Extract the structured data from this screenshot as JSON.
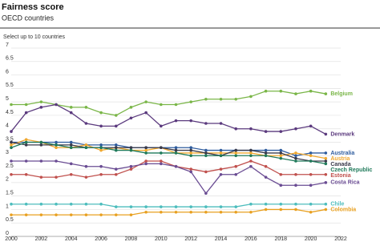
{
  "chart_data": {
    "type": "line",
    "title": "Fairness score",
    "subtitle": "OECD countries",
    "note": "Select up to 10 countries",
    "x": [
      2000,
      2001,
      2002,
      2003,
      2004,
      2005,
      2006,
      2007,
      2008,
      2009,
      2010,
      2011,
      2012,
      2013,
      2014,
      2015,
      2016,
      2017,
      2018,
      2019,
      2020,
      2021
    ],
    "xlim": [
      2000,
      2022
    ],
    "xticks": [
      2000,
      2002,
      2004,
      2006,
      2008,
      2010,
      2012,
      2014,
      2016,
      2018,
      2020,
      2022
    ],
    "ylim": [
      0,
      7
    ],
    "yticks": [
      0,
      0.5,
      1,
      1.5,
      2,
      2.5,
      3,
      3.5,
      4,
      4.5,
      5,
      5.5,
      6,
      6.5,
      7
    ],
    "grid": true,
    "series": [
      {
        "name": "Belgium",
        "color": "#7ab648",
        "values": [
          4.9,
          4.9,
          5.0,
          4.9,
          4.8,
          4.8,
          4.6,
          4.5,
          4.8,
          5.0,
          4.9,
          4.9,
          5.0,
          5.1,
          5.1,
          5.1,
          5.2,
          5.4,
          5.4,
          5.3,
          5.4,
          5.3
        ]
      },
      {
        "name": "Denmark",
        "color": "#5b3a7e",
        "values": [
          3.9,
          4.6,
          4.8,
          4.9,
          4.6,
          4.2,
          4.1,
          4.1,
          4.4,
          4.6,
          4.1,
          4.3,
          4.3,
          4.2,
          4.2,
          4.0,
          4.0,
          3.9,
          3.9,
          4.0,
          4.1,
          3.8
        ]
      },
      {
        "name": "Australia",
        "color": "#2e5c9e",
        "values": [
          3.5,
          3.5,
          3.5,
          3.5,
          3.5,
          3.4,
          3.4,
          3.4,
          3.3,
          3.3,
          3.3,
          3.3,
          3.3,
          3.2,
          3.2,
          3.2,
          3.2,
          3.2,
          3.2,
          3.0,
          3.1,
          3.1
        ]
      },
      {
        "name": "Austria",
        "color": "#f0a830",
        "values": [
          3.4,
          3.6,
          3.5,
          3.3,
          3.3,
          3.4,
          3.2,
          3.3,
          3.2,
          3.2,
          3.3,
          3.1,
          3.1,
          3.1,
          3.1,
          3.1,
          3.1,
          3.0,
          3.0,
          3.1,
          3.0,
          2.9
        ]
      },
      {
        "name": "Canada",
        "color": "#3a3a4a",
        "values": [
          3.5,
          3.4,
          3.4,
          3.4,
          3.4,
          3.3,
          3.3,
          3.3,
          3.3,
          3.3,
          3.3,
          3.2,
          3.2,
          3.1,
          3.0,
          3.2,
          3.2,
          3.1,
          3.1,
          2.9,
          2.8,
          2.8
        ]
      },
      {
        "name": "Czech Republic",
        "color": "#1f7a5a",
        "values": [
          3.3,
          3.5,
          3.5,
          3.4,
          3.3,
          3.3,
          3.3,
          3.2,
          3.2,
          3.1,
          3.1,
          3.1,
          3.0,
          3.0,
          3.0,
          3.0,
          3.0,
          3.0,
          2.9,
          2.8,
          2.8,
          2.7
        ]
      },
      {
        "name": "Estonia",
        "color": "#c0504d",
        "values": [
          2.3,
          2.3,
          2.2,
          2.2,
          2.3,
          2.2,
          2.3,
          2.3,
          2.5,
          2.8,
          2.8,
          2.6,
          2.5,
          2.4,
          2.5,
          2.6,
          2.8,
          2.6,
          2.3,
          2.3,
          2.3,
          2.3
        ]
      },
      {
        "name": "Costa Rica",
        "color": "#6a4c93",
        "values": [
          2.8,
          2.8,
          2.8,
          2.8,
          2.7,
          2.6,
          2.6,
          2.5,
          2.6,
          2.7,
          2.7,
          2.6,
          2.4,
          1.6,
          2.3,
          2.3,
          2.6,
          2.2,
          1.9,
          1.9,
          1.9,
          2.0
        ]
      },
      {
        "name": "Chile",
        "color": "#4dbdbd",
        "values": [
          1.2,
          1.2,
          1.2,
          1.2,
          1.2,
          1.2,
          1.2,
          1.1,
          1.1,
          1.1,
          1.1,
          1.1,
          1.1,
          1.1,
          1.1,
          1.1,
          1.2,
          1.2,
          1.2,
          1.2,
          1.2,
          1.2
        ]
      },
      {
        "name": "Colombia",
        "color": "#e8a020",
        "values": [
          0.8,
          0.8,
          0.8,
          0.8,
          0.8,
          0.8,
          0.8,
          0.8,
          0.8,
          0.9,
          0.9,
          0.9,
          0.9,
          0.9,
          0.9,
          0.9,
          0.9,
          1.0,
          1.0,
          1.0,
          0.9,
          1.0
        ]
      }
    ]
  }
}
